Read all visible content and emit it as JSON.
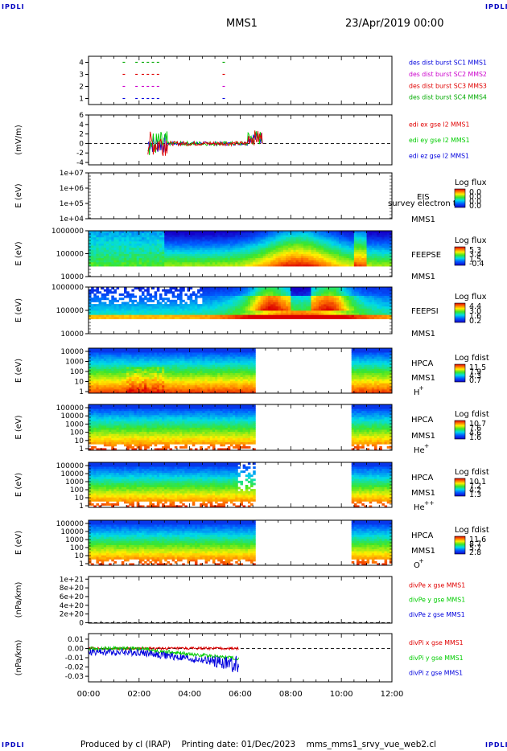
{
  "corner_label": "IPDLI",
  "header": {
    "spacecraft": "MMS1",
    "date": "23/Apr/2019 00:00"
  },
  "footer": "Produced by cl (IRAP)    Printing date: 01/Dec/2023    mms_mms1_srvy_vue_web2.cl",
  "colors": {
    "red": "#e00000",
    "green": "#00cc00",
    "blue": "#0000dd",
    "magenta": "#cc00cc",
    "mono_green": "#00aa00"
  },
  "time_axis": {
    "labels": [
      "00:00",
      "02:00",
      "04:00",
      "06:00",
      "08:00",
      "10:00",
      "12:00"
    ],
    "hours": [
      0,
      2,
      4,
      6,
      8,
      10,
      12
    ]
  },
  "chart_data": [
    {
      "id": "burst",
      "type": "line",
      "ylim": [
        0.5,
        4.5
      ],
      "ytick_labels": [
        "4",
        "3",
        "2",
        "1"
      ],
      "yticks": [
        4,
        3,
        2,
        1
      ],
      "legend": [
        {
          "text": "des dist burst SC1 MMS1",
          "color": "blue"
        },
        {
          "text": "des dist burst SC2 MMS2",
          "color": "magenta"
        },
        {
          "text": "des dist burst SC3 MMS3",
          "color": "red"
        },
        {
          "text": "des dist burst SC4 MMS4",
          "color": "mono_green"
        }
      ],
      "series": [
        {
          "level": 4,
          "color": "mono_green",
          "x": [
            1.35,
            1.85,
            2.1,
            2.3,
            2.5,
            2.7,
            5.3
          ]
        },
        {
          "level": 3,
          "color": "red",
          "x": [
            1.35,
            1.85,
            2.1,
            2.3,
            2.5,
            2.7,
            5.3
          ]
        },
        {
          "level": 2,
          "color": "magenta",
          "x": [
            1.35,
            1.85,
            2.1,
            2.3,
            2.5,
            2.7,
            5.3
          ]
        },
        {
          "level": 1,
          "color": "blue",
          "x": [
            1.35,
            1.85,
            2.1,
            2.3,
            2.5,
            2.7,
            5.3
          ]
        }
      ]
    },
    {
      "id": "efield",
      "type": "line",
      "ylabel": "(mV/m)",
      "ylim": [
        -4.5,
        6
      ],
      "ytick_labels": [
        "6",
        "4",
        "2",
        "0",
        "-2",
        "-4"
      ],
      "yticks": [
        6,
        4,
        2,
        0,
        -2,
        -4
      ],
      "legend": [
        {
          "text": "edi ex gse l2 MMS1",
          "color": "red"
        },
        {
          "text": "edi ey gse l2 MMS1",
          "color": "green"
        },
        {
          "text": "edi ez gse l2 MMS1",
          "color": "blue"
        }
      ],
      "data_range_hours": [
        2.35,
        6.9
      ]
    },
    {
      "id": "eis",
      "type": "heatmap",
      "ylabel": "E (eV)",
      "ytick_labels": [
        "1e+07",
        "1e+06",
        "1e+05",
        "1e+04"
      ],
      "side_labels": [
        "EIS",
        "MMS1"
      ],
      "overlay_text": "survey electron to",
      "colorbar_title": "Log flux",
      "colorbar_ticks": [
        "0.0",
        "0.0",
        "0.0",
        "0.0"
      ]
    },
    {
      "id": "feepse",
      "type": "heatmap",
      "ylabel": "E (eV)",
      "ytick_labels": [
        "1000000",
        "100000",
        "10000"
      ],
      "side_labels": [
        "FEEPSE",
        "MMS1"
      ],
      "colorbar_title": "Log flux",
      "colorbar_ticks": [
        "5.3",
        "3.4",
        "1.5",
        "-0.4"
      ]
    },
    {
      "id": "feepsi",
      "type": "heatmap",
      "ylabel": "E (eV)",
      "ytick_labels": [
        "1000000",
        "100000",
        "10000"
      ],
      "side_labels": [
        "FEEPSI",
        "MMS1"
      ],
      "colorbar_title": "Log flux",
      "colorbar_ticks": [
        "4.4",
        "3.0",
        "1.6",
        "0.2"
      ]
    },
    {
      "id": "hpca_h",
      "type": "heatmap",
      "ylabel": "E (eV)",
      "ytick_labels": [
        "10000",
        "1000",
        "100",
        "10",
        "1"
      ],
      "side_labels": [
        "HPCA",
        "MMS1"
      ],
      "species": "H",
      "charge": "+",
      "colorbar_title": "Log fdist",
      "colorbar_ticks": [
        "11.5",
        "7.9",
        "4.3",
        "0.7"
      ],
      "data_gap_hours": [
        6.55,
        10.45
      ]
    },
    {
      "id": "hpca_he",
      "type": "heatmap",
      "ylabel": "E (eV)",
      "ytick_labels": [
        "100000",
        "10000",
        "1000",
        "100",
        "10",
        "1"
      ],
      "side_labels": [
        "HPCA",
        "MMS1"
      ],
      "species": "He",
      "charge": "+",
      "colorbar_title": "Log fdist",
      "colorbar_ticks": [
        "10.7",
        "7.6",
        "4.6",
        "1.6"
      ],
      "data_gap_hours": [
        6.55,
        10.45
      ]
    },
    {
      "id": "hpca_hepp",
      "type": "heatmap",
      "ylabel": "E (eV)",
      "ytick_labels": [
        "100000",
        "10000",
        "1000",
        "100",
        "10",
        "1"
      ],
      "side_labels": [
        "HPCA",
        "MMS1"
      ],
      "species": "He",
      "charge": "++",
      "colorbar_title": "Log fdist",
      "colorbar_ticks": [
        "10.1",
        "7.2",
        "4.2",
        "1.3"
      ],
      "data_gap_hours": [
        6.55,
        10.45
      ]
    },
    {
      "id": "hpca_o",
      "type": "heatmap",
      "ylabel": "E (eV)",
      "ytick_labels": [
        "100000",
        "10000",
        "1000",
        "100",
        "10",
        "1"
      ],
      "side_labels": [
        "HPCA",
        "MMS1"
      ],
      "species": "O",
      "charge": "+",
      "colorbar_title": "Log fdist",
      "colorbar_ticks": [
        "11.6",
        "8.7",
        "5.7",
        "2.8"
      ],
      "data_gap_hours": [
        6.55,
        10.45
      ]
    },
    {
      "id": "divpe",
      "type": "line",
      "ylabel": "(nPa/km)",
      "ytick_labels": [
        "1e+21",
        "8e+20",
        "6e+20",
        "4e+20",
        "2e+20",
        "0"
      ],
      "yticks": [
        1e+21,
        8e+20,
        6e+20,
        4e+20,
        2e+20,
        0
      ],
      "ylim": [
        -1e+19,
        1.06e+21
      ],
      "legend": [
        {
          "text": "divPe x gse MMS1",
          "color": "red"
        },
        {
          "text": "divPe y gse MMS1",
          "color": "green"
        },
        {
          "text": "divPe z gse MMS1",
          "color": "blue"
        }
      ]
    },
    {
      "id": "divpi",
      "type": "line",
      "ylabel": "(nPa/km)",
      "ytick_labels": [
        "0.01",
        "0.00",
        "-0.01",
        "-0.02",
        "-0.03"
      ],
      "yticks": [
        0.01,
        0,
        -0.01,
        -0.02,
        -0.03
      ],
      "ylim": [
        -0.036,
        0.016
      ],
      "legend": [
        {
          "text": "divPi x gse MMS1",
          "color": "red"
        },
        {
          "text": "divPi y gse MMS1",
          "color": "green"
        },
        {
          "text": "divPi z gse MMS1",
          "color": "blue"
        }
      ],
      "data_range_hours": [
        0,
        5.95
      ]
    }
  ]
}
